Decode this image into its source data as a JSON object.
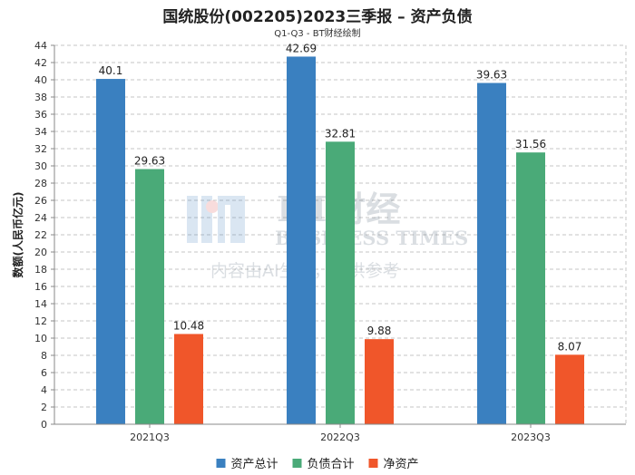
{
  "chart_data": {
    "type": "bar",
    "title": "国统股份(002205)2023三季报 – 资产负债",
    "subtitle": "Q1-Q3 - BT财经绘制",
    "ylabel": "数额(人民币亿元)",
    "xlabel": "",
    "categories": [
      "2021Q3",
      "2022Q3",
      "2023Q3"
    ],
    "series": [
      {
        "name": "资产总计",
        "color": "#3a80c0",
        "values": [
          40.1,
          42.69,
          39.63
        ],
        "labels": [
          "40.1",
          "42.69",
          "39.63"
        ]
      },
      {
        "name": "负债合计",
        "color": "#4aaa78",
        "values": [
          29.63,
          32.81,
          31.56
        ],
        "labels": [
          "29.63",
          "32.81",
          "31.56"
        ]
      },
      {
        "name": "净资产",
        "color": "#f0562a",
        "values": [
          10.48,
          9.88,
          8.07
        ],
        "labels": [
          "10.48",
          "9.88",
          "8.07"
        ]
      }
    ],
    "ylim": [
      0,
      44
    ],
    "yticks": [
      0,
      2,
      4,
      6,
      8,
      10,
      12,
      14,
      16,
      18,
      20,
      22,
      24,
      26,
      28,
      30,
      32,
      34,
      36,
      38,
      40,
      42,
      44
    ],
    "grid": true,
    "legend_position": "bottom"
  },
  "watermark": {
    "logo_text": "BT财经",
    "logo_subtext": "BUSINESS TIMES",
    "notice": "内容由AI生成，仅供参考"
  }
}
